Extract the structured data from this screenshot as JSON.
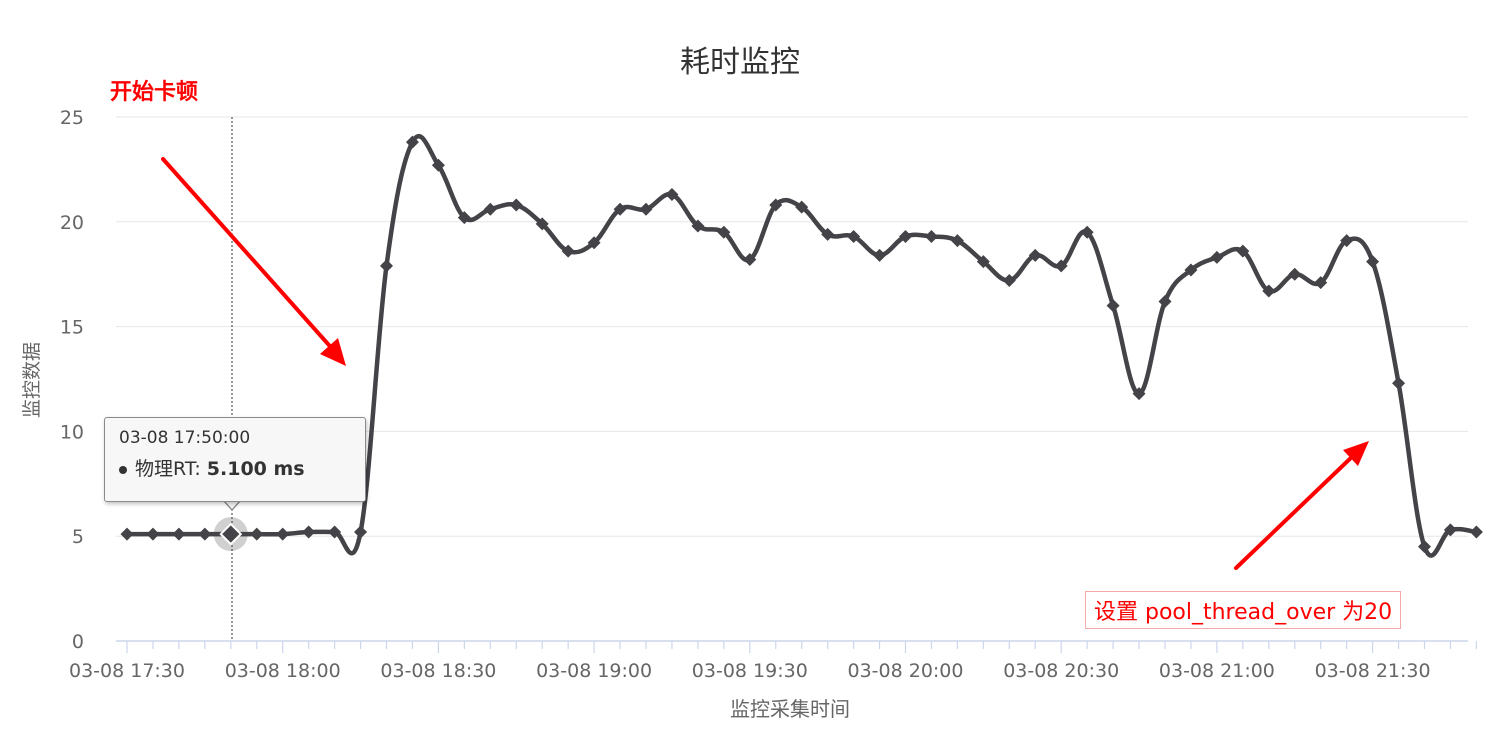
{
  "chart_data": {
    "type": "line",
    "title": "耗时监控",
    "xlabel": "监控采集时间",
    "ylabel": "监控数据",
    "ylim": [
      0,
      25
    ],
    "yticks": [
      0,
      5,
      10,
      15,
      20,
      25
    ],
    "grid": true,
    "legend": "none",
    "xticks": [
      "03-08 17:30",
      "03-08 18:00",
      "03-08 18:30",
      "03-08 19:00",
      "03-08 19:30",
      "03-08 20:00",
      "03-08 20:30",
      "03-08 21:00",
      "03-08 21:30"
    ],
    "line_color": "#434348",
    "series": [
      {
        "values": [
          5.1,
          5.1,
          5.1,
          5.1,
          5.1,
          5.1,
          5.1,
          5.2,
          5.2,
          5.2,
          17.9,
          23.8,
          22.7,
          20.2,
          20.6,
          20.8,
          19.9,
          18.6,
          19.0,
          20.6,
          20.6,
          21.3,
          19.8,
          19.5,
          18.2,
          20.8,
          20.7,
          19.4,
          19.3,
          18.4,
          19.3,
          19.3,
          19.1,
          18.1,
          17.2,
          18.4,
          17.9,
          19.5,
          16.0,
          11.8,
          16.2,
          17.7,
          18.3,
          18.6,
          16.7,
          17.5,
          17.1,
          19.1,
          18.1,
          12.3,
          4.5,
          5.3,
          5.2
        ]
      }
    ],
    "x_interval_minutes": 5,
    "x_start": "03-08 17:30"
  },
  "annotations": {
    "start_lag": "开始卡顿",
    "setting": "设置 pool_thread_over 为20"
  },
  "tooltip": {
    "time": "03-08 17:50:00",
    "series_label": "物理RT: ",
    "value": "5.100 ms"
  },
  "colors": {
    "arrow": "#ff0000",
    "grid": "#e6e6e6",
    "axis": "#ccd6eb",
    "text": "#666666"
  }
}
